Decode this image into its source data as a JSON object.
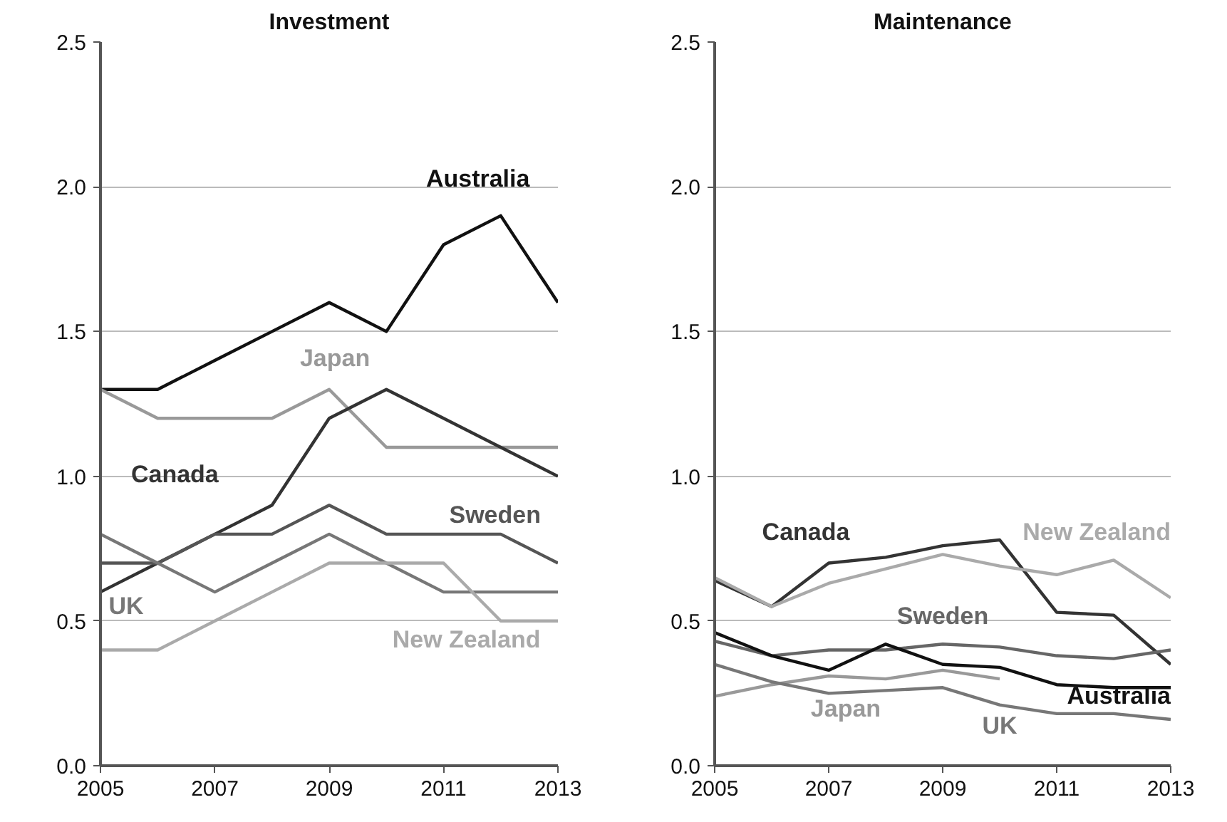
{
  "chart_data": [
    {
      "type": "line",
      "title": "Investment",
      "x": [
        2005,
        2006,
        2007,
        2008,
        2009,
        2010,
        2011,
        2012,
        2013
      ],
      "series": [
        {
          "name": "Australia",
          "color": "#111111",
          "values": [
            1.3,
            1.3,
            1.4,
            1.5,
            1.6,
            1.5,
            1.8,
            1.9,
            1.6
          ]
        },
        {
          "name": "Japan",
          "color": "#999999",
          "values": [
            1.3,
            1.2,
            1.2,
            1.2,
            1.3,
            1.1,
            1.1,
            1.1,
            1.1
          ]
        },
        {
          "name": "Canada",
          "color": "#333333",
          "values": [
            0.6,
            0.7,
            0.8,
            0.9,
            1.2,
            1.3,
            1.2,
            1.1,
            1.0
          ]
        },
        {
          "name": "Sweden",
          "color": "#555555",
          "values": [
            0.7,
            0.7,
            0.8,
            0.8,
            0.9,
            0.8,
            0.8,
            0.8,
            0.7
          ]
        },
        {
          "name": "UK",
          "color": "#777777",
          "values": [
            0.8,
            0.7,
            0.6,
            0.7,
            0.8,
            0.7,
            0.6,
            0.6,
            0.6
          ]
        },
        {
          "name": "New Zealand",
          "color": "#aaaaaa",
          "values": [
            0.4,
            0.4,
            0.5,
            0.6,
            0.7,
            0.7,
            0.7,
            0.5,
            0.5
          ]
        }
      ],
      "xlim": [
        2005,
        2013
      ],
      "xticks": [
        2005,
        2007,
        2009,
        2011,
        2013
      ],
      "ylim": [
        0,
        2.5
      ],
      "yticks": [
        {
          "value": 0,
          "label": "0.0"
        },
        0.5,
        {
          "value": 1,
          "label": "1.0"
        },
        1.5,
        {
          "value": 2,
          "label": "2.0"
        },
        2.5
      ],
      "grid": "y"
    },
    {
      "type": "line",
      "title": "Maintenance",
      "x": [
        2005,
        2006,
        2007,
        2008,
        2009,
        2010,
        2011,
        2012,
        2013
      ],
      "series": [
        {
          "name": "Canada",
          "color": "#333333",
          "values": [
            0.64,
            0.55,
            0.7,
            0.72,
            0.76,
            0.78,
            0.53,
            0.52,
            0.35
          ]
        },
        {
          "name": "New Zealand",
          "color": "#aaaaaa",
          "values": [
            0.65,
            0.55,
            0.63,
            0.68,
            0.73,
            0.69,
            0.66,
            0.71,
            0.58
          ]
        },
        {
          "name": "Sweden",
          "color": "#666666",
          "values": [
            0.43,
            0.38,
            0.4,
            0.4,
            0.42,
            0.41,
            0.38,
            0.37,
            0.4
          ]
        },
        {
          "name": "Australia",
          "color": "#111111",
          "values": [
            0.46,
            0.38,
            0.33,
            0.42,
            0.35,
            0.34,
            0.28,
            0.27,
            0.27
          ]
        },
        {
          "name": "Japan",
          "color": "#999999",
          "values": [
            0.24,
            0.28,
            0.31,
            0.3,
            0.33,
            0.3,
            null,
            null,
            null
          ]
        },
        {
          "name": "UK",
          "color": "#777777",
          "values": [
            0.35,
            0.29,
            0.25,
            0.26,
            0.27,
            0.21,
            0.18,
            0.18,
            0.16
          ]
        }
      ],
      "xlim": [
        2005,
        2013
      ],
      "xticks": [
        2005,
        2007,
        2009,
        2011,
        2013
      ],
      "ylim": [
        0,
        2.5
      ],
      "yticks": [
        {
          "value": 0,
          "label": "0.0"
        },
        0.5,
        {
          "value": 1,
          "label": "1.0"
        },
        1.5,
        {
          "value": 2,
          "label": "2.0"
        },
        2.5
      ],
      "grid": "y"
    }
  ]
}
